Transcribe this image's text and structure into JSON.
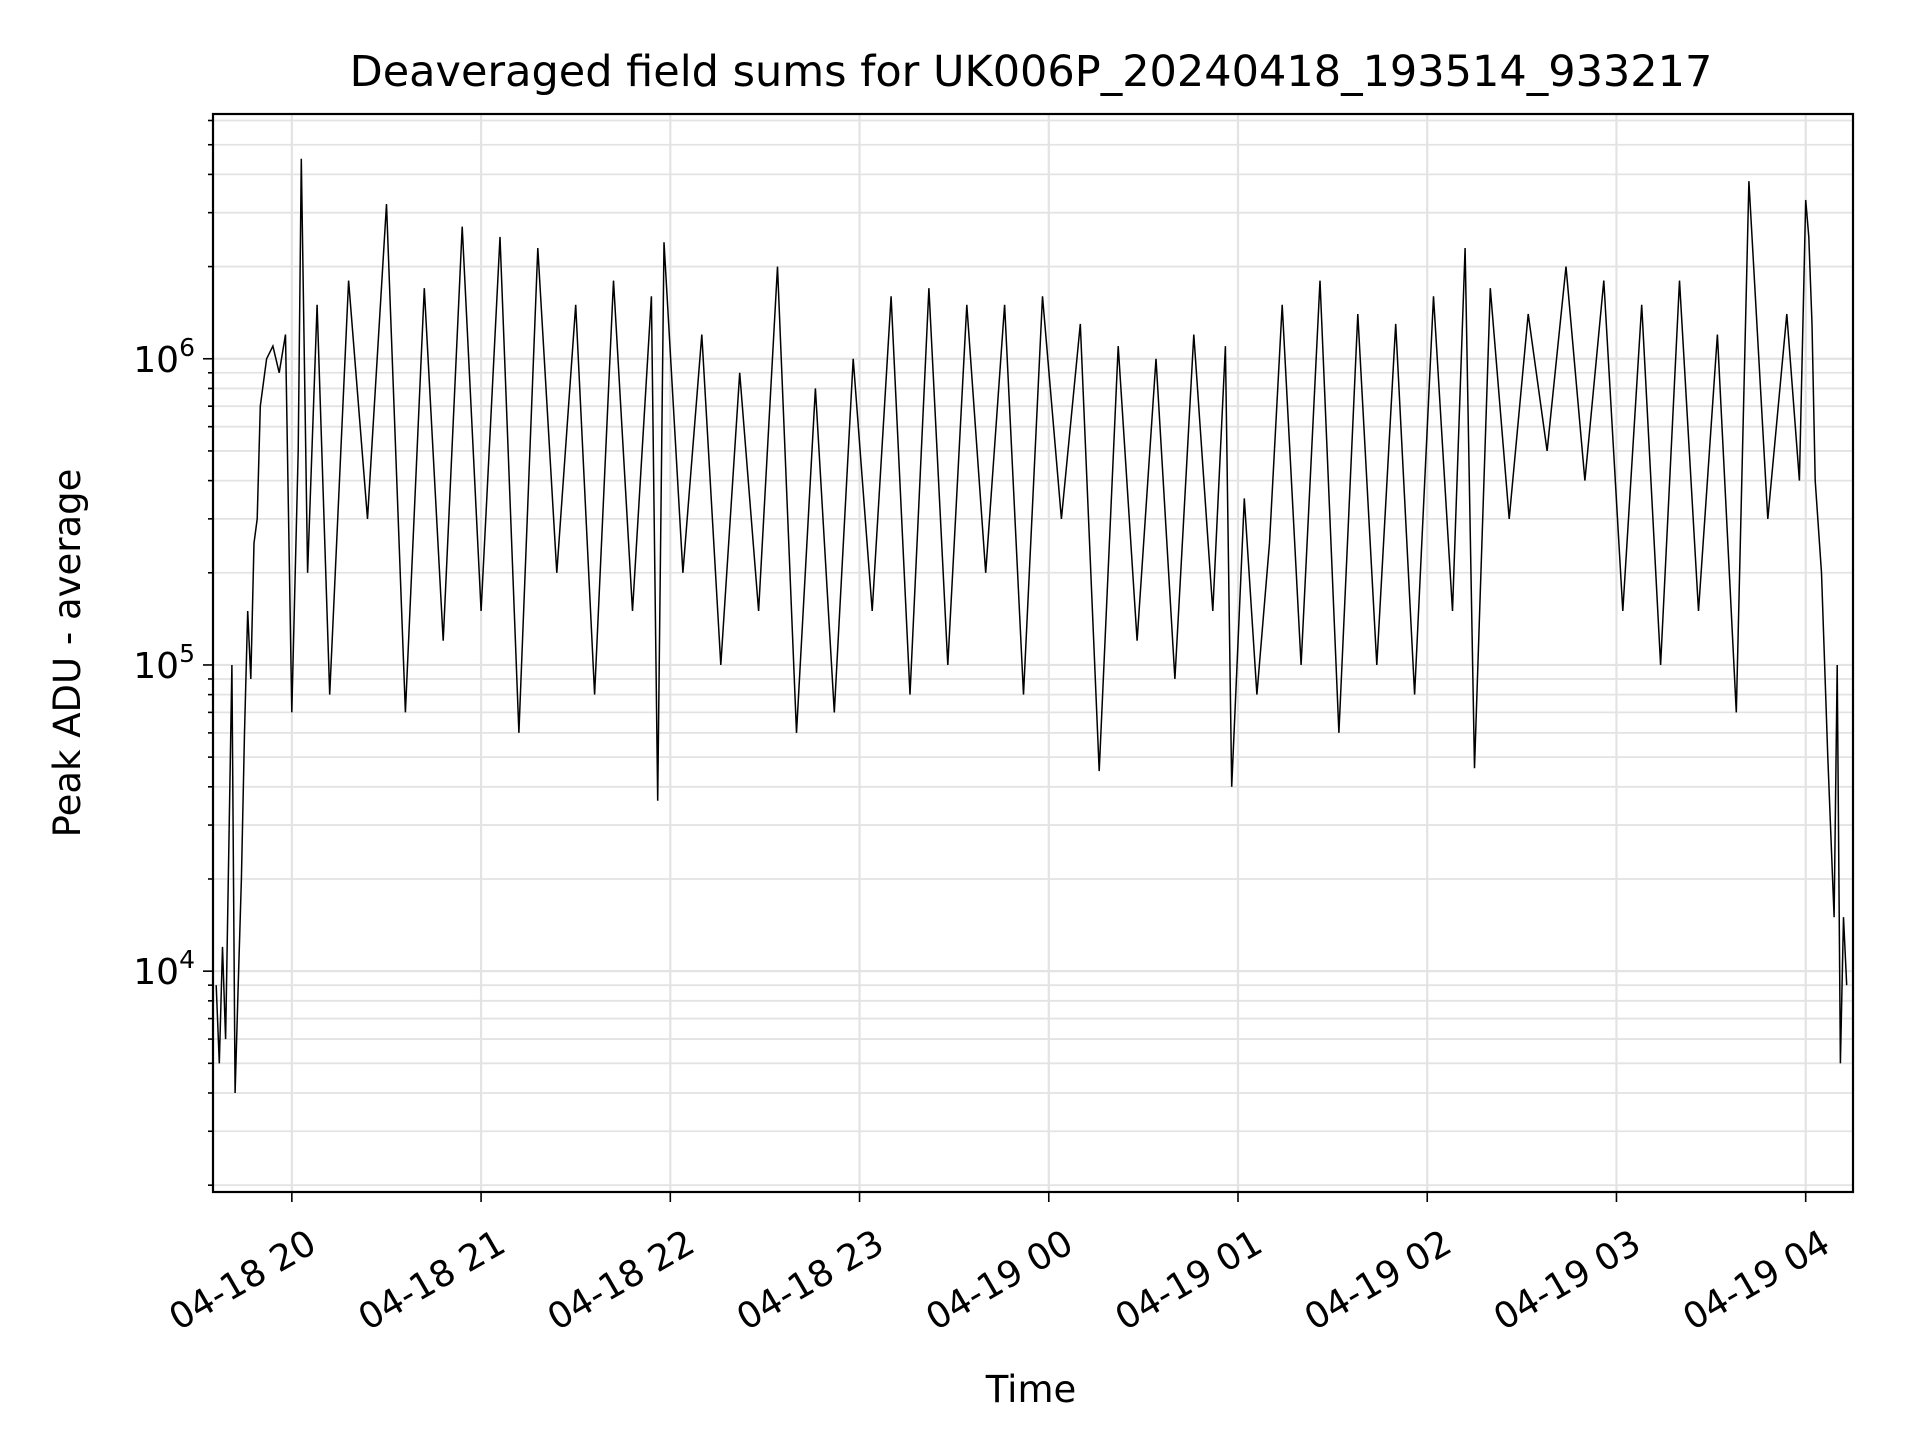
{
  "chart_data": {
    "type": "line",
    "title": "Deaveraged field sums for UK006P_20240418_193514_933217",
    "xlabel": "Time",
    "ylabel": "Peak ADU - average",
    "x_axis_type": "datetime",
    "y_scale": "log",
    "xlim": [
      "2024-04-18 19:35",
      "2024-04-19 04:15"
    ],
    "ylim": [
      1900,
      6300000
    ],
    "grid": true,
    "legend": "none",
    "line_color": "#000000",
    "x_ticks": [
      {
        "time": "2024-04-18 20:00",
        "label": "04-18 20"
      },
      {
        "time": "2024-04-18 21:00",
        "label": "04-18 21"
      },
      {
        "time": "2024-04-18 22:00",
        "label": "04-18 22"
      },
      {
        "time": "2024-04-18 23:00",
        "label": "04-18 23"
      },
      {
        "time": "2024-04-19 00:00",
        "label": "04-19 00"
      },
      {
        "time": "2024-04-19 01:00",
        "label": "04-19 01"
      },
      {
        "time": "2024-04-19 02:00",
        "label": "04-19 02"
      },
      {
        "time": "2024-04-19 03:00",
        "label": "04-19 03"
      },
      {
        "time": "2024-04-19 04:00",
        "label": "04-19 04"
      }
    ],
    "y_ticks": [
      {
        "value": 10000,
        "base": "10",
        "exp": "4"
      },
      {
        "value": 100000,
        "base": "10",
        "exp": "5"
      },
      {
        "value": 1000000,
        "base": "10",
        "exp": "6"
      }
    ],
    "series": [
      {
        "points": [
          [
            "2024-04-18 19:36",
            9000
          ],
          [
            "2024-04-18 19:37",
            5000
          ],
          [
            "2024-04-18 19:38",
            12000
          ],
          [
            "2024-04-18 19:39",
            6000
          ],
          [
            "2024-04-18 19:40",
            25000
          ],
          [
            "2024-04-18 19:41",
            100000
          ],
          [
            "2024-04-18 19:42",
            4000
          ],
          [
            "2024-04-18 19:43",
            9000
          ],
          [
            "2024-04-18 19:44",
            20000
          ],
          [
            "2024-04-18 19:45",
            60000
          ],
          [
            "2024-04-18 19:46",
            150000
          ],
          [
            "2024-04-18 19:47",
            90000
          ],
          [
            "2024-04-18 19:48",
            250000
          ],
          [
            "2024-04-18 19:49",
            300000
          ],
          [
            "2024-04-18 19:50",
            700000
          ],
          [
            "2024-04-18 19:52",
            1000000
          ],
          [
            "2024-04-18 19:54",
            1100000
          ],
          [
            "2024-04-18 19:56",
            900000
          ],
          [
            "2024-04-18 19:58",
            1200000
          ],
          [
            "2024-04-18 20:00",
            70000
          ],
          [
            "2024-04-18 20:02",
            500000
          ],
          [
            "2024-04-18 20:03",
            4500000
          ],
          [
            "2024-04-18 20:05",
            200000
          ],
          [
            "2024-04-18 20:08",
            1500000
          ],
          [
            "2024-04-18 20:12",
            80000
          ],
          [
            "2024-04-18 20:18",
            1800000
          ],
          [
            "2024-04-18 20:24",
            300000
          ],
          [
            "2024-04-18 20:30",
            3200000
          ],
          [
            "2024-04-18 20:36",
            70000
          ],
          [
            "2024-04-18 20:42",
            1700000
          ],
          [
            "2024-04-18 20:48",
            120000
          ],
          [
            "2024-04-18 20:54",
            2700000
          ],
          [
            "2024-04-18 21:00",
            150000
          ],
          [
            "2024-04-18 21:06",
            2500000
          ],
          [
            "2024-04-18 21:12",
            60000
          ],
          [
            "2024-04-18 21:18",
            2300000
          ],
          [
            "2024-04-18 21:24",
            200000
          ],
          [
            "2024-04-18 21:30",
            1500000
          ],
          [
            "2024-04-18 21:36",
            80000
          ],
          [
            "2024-04-18 21:42",
            1800000
          ],
          [
            "2024-04-18 21:48",
            150000
          ],
          [
            "2024-04-18 21:54",
            1600000
          ],
          [
            "2024-04-18 21:56",
            36000
          ],
          [
            "2024-04-18 21:58",
            2400000
          ],
          [
            "2024-04-18 22:04",
            200000
          ],
          [
            "2024-04-18 22:10",
            1200000
          ],
          [
            "2024-04-18 22:16",
            100000
          ],
          [
            "2024-04-18 22:22",
            900000
          ],
          [
            "2024-04-18 22:28",
            150000
          ],
          [
            "2024-04-18 22:34",
            2000000
          ],
          [
            "2024-04-18 22:40",
            60000
          ],
          [
            "2024-04-18 22:46",
            800000
          ],
          [
            "2024-04-18 22:52",
            70000
          ],
          [
            "2024-04-18 22:58",
            1000000
          ],
          [
            "2024-04-18 23:04",
            150000
          ],
          [
            "2024-04-18 23:10",
            1600000
          ],
          [
            "2024-04-18 23:16",
            80000
          ],
          [
            "2024-04-18 23:22",
            1700000
          ],
          [
            "2024-04-18 23:28",
            100000
          ],
          [
            "2024-04-18 23:34",
            1500000
          ],
          [
            "2024-04-18 23:40",
            200000
          ],
          [
            "2024-04-18 23:46",
            1500000
          ],
          [
            "2024-04-18 23:52",
            80000
          ],
          [
            "2024-04-18 23:58",
            1600000
          ],
          [
            "2024-04-19 00:04",
            300000
          ],
          [
            "2024-04-19 00:10",
            1300000
          ],
          [
            "2024-04-19 00:16",
            45000
          ],
          [
            "2024-04-19 00:22",
            1100000
          ],
          [
            "2024-04-19 00:28",
            120000
          ],
          [
            "2024-04-19 00:34",
            1000000
          ],
          [
            "2024-04-19 00:40",
            90000
          ],
          [
            "2024-04-19 00:46",
            1200000
          ],
          [
            "2024-04-19 00:52",
            150000
          ],
          [
            "2024-04-19 00:56",
            1100000
          ],
          [
            "2024-04-19 00:58",
            40000
          ],
          [
            "2024-04-19 01:02",
            350000
          ],
          [
            "2024-04-19 01:06",
            80000
          ],
          [
            "2024-04-19 01:10",
            250000
          ],
          [
            "2024-04-19 01:14",
            1500000
          ],
          [
            "2024-04-19 01:20",
            100000
          ],
          [
            "2024-04-19 01:26",
            1800000
          ],
          [
            "2024-04-19 01:32",
            60000
          ],
          [
            "2024-04-19 01:38",
            1400000
          ],
          [
            "2024-04-19 01:44",
            100000
          ],
          [
            "2024-04-19 01:50",
            1300000
          ],
          [
            "2024-04-19 01:56",
            80000
          ],
          [
            "2024-04-19 02:02",
            1600000
          ],
          [
            "2024-04-19 02:08",
            150000
          ],
          [
            "2024-04-19 02:12",
            2300000
          ],
          [
            "2024-04-19 02:15",
            46000
          ],
          [
            "2024-04-19 02:20",
            1700000
          ],
          [
            "2024-04-19 02:26",
            300000
          ],
          [
            "2024-04-19 02:32",
            1400000
          ],
          [
            "2024-04-19 02:38",
            500000
          ],
          [
            "2024-04-19 02:44",
            2000000
          ],
          [
            "2024-04-19 02:50",
            400000
          ],
          [
            "2024-04-19 02:56",
            1800000
          ],
          [
            "2024-04-19 03:02",
            150000
          ],
          [
            "2024-04-19 03:08",
            1500000
          ],
          [
            "2024-04-19 03:14",
            100000
          ],
          [
            "2024-04-19 03:20",
            1800000
          ],
          [
            "2024-04-19 03:26",
            150000
          ],
          [
            "2024-04-19 03:32",
            1200000
          ],
          [
            "2024-04-19 03:38",
            70000
          ],
          [
            "2024-04-19 03:42",
            3800000
          ],
          [
            "2024-04-19 03:48",
            300000
          ],
          [
            "2024-04-19 03:54",
            1400000
          ],
          [
            "2024-04-19 03:58",
            400000
          ],
          [
            "2024-04-19 04:00",
            3300000
          ],
          [
            "2024-04-19 04:01",
            2500000
          ],
          [
            "2024-04-19 04:02",
            1300000
          ],
          [
            "2024-04-19 04:03",
            400000
          ],
          [
            "2024-04-19 04:05",
            200000
          ],
          [
            "2024-04-19 04:07",
            50000
          ],
          [
            "2024-04-19 04:09",
            15000
          ],
          [
            "2024-04-19 04:10",
            100000
          ],
          [
            "2024-04-19 04:11",
            5000
          ],
          [
            "2024-04-19 04:12",
            15000
          ],
          [
            "2024-04-19 04:13",
            9000
          ]
        ]
      }
    ]
  }
}
